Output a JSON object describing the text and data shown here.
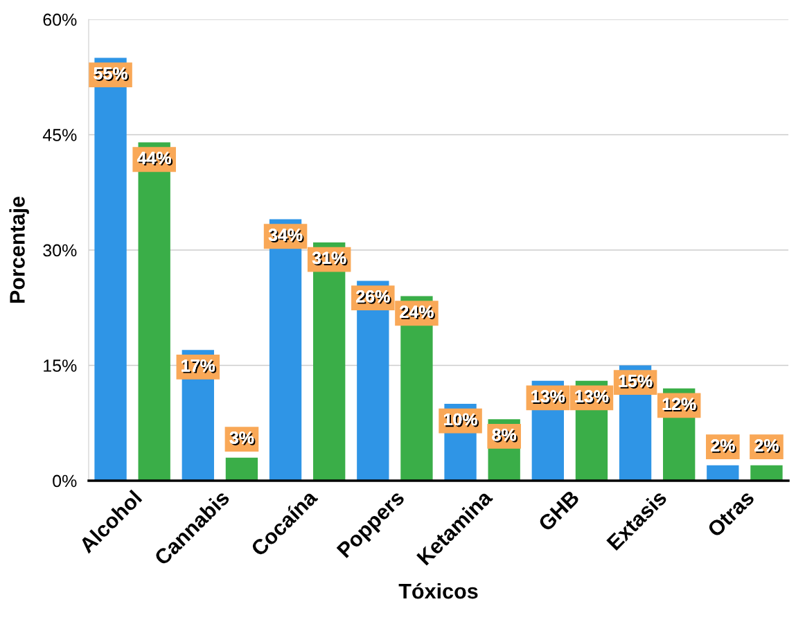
{
  "chart_data": {
    "type": "bar",
    "xlabel": "Tóxicos",
    "ylabel": "Porcentaje",
    "categories": [
      "Alcohol",
      "Cannabis",
      "Cocaína",
      "Poppers",
      "Ketamina",
      "GHB",
      "Extasis",
      "Otras"
    ],
    "series": [
      {
        "color": "#2f95e6",
        "values": [
          55,
          17,
          34,
          26,
          10,
          13,
          15,
          2
        ],
        "value_labels": [
          "55%",
          "17%",
          "34%",
          "26%",
          "10%",
          "13%",
          "15%",
          "2%"
        ]
      },
      {
        "color": "#3aae48",
        "values": [
          44,
          3,
          31,
          24,
          8,
          13,
          12,
          2
        ],
        "value_labels": [
          "44%",
          "3%",
          "31%",
          "24%",
          "8%",
          "13%",
          "12%",
          "2%"
        ]
      }
    ],
    "ylim": [
      0,
      60
    ],
    "yticks": [
      {
        "value": 0,
        "label": "0%"
      },
      {
        "value": 15,
        "label": "15%"
      },
      {
        "value": 30,
        "label": "30%"
      },
      {
        "value": 45,
        "label": "45%"
      },
      {
        "value": 60,
        "label": "60%"
      }
    ],
    "grid": "y"
  }
}
